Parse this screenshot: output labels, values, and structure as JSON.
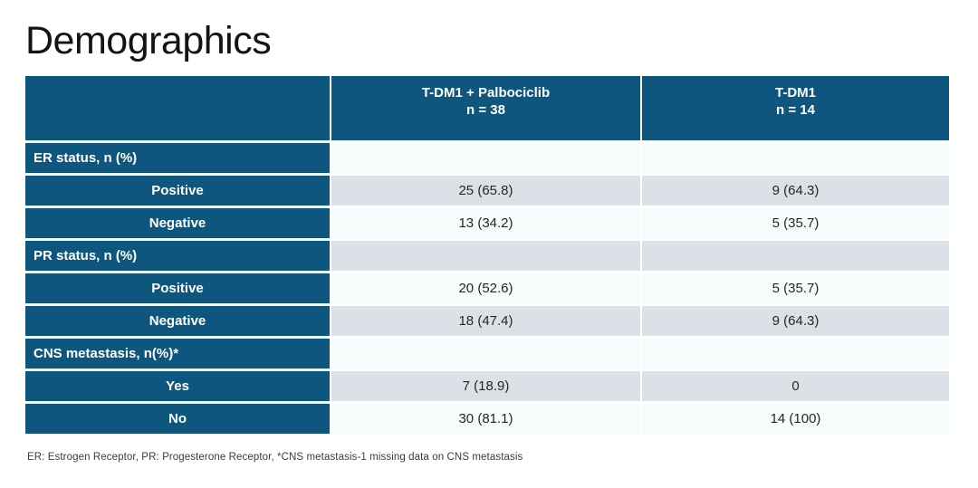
{
  "slide": {
    "title": "Demographics",
    "footnote": "ER: Estrogen Receptor, PR: Progesterone Receptor, *CNS metastasis-1 missing data on CNS metastasis"
  },
  "colors": {
    "header_blue": "#0E567D",
    "gray_row": "#DCE1E8",
    "light_row": "#F6FBFB",
    "title_text": "#141414",
    "header_text": "#FFFFFF",
    "cell_text": "#262626"
  },
  "table": {
    "columns": [
      {
        "line1": "",
        "line2": ""
      },
      {
        "line1": "T-DM1 + Palbociclib",
        "line2": "n = 38"
      },
      {
        "line1": "T-DM1",
        "line2": "n = 14"
      }
    ],
    "rows": [
      {
        "type": "section",
        "label": "ER status, n (%)",
        "values": [
          "",
          ""
        ]
      },
      {
        "type": "data",
        "label": "Positive",
        "values": [
          "25 (65.8)",
          "9 (64.3)"
        ]
      },
      {
        "type": "data",
        "label": "Negative",
        "values": [
          "13 (34.2)",
          "5 (35.7)"
        ]
      },
      {
        "type": "section",
        "label": "PR status, n (%)",
        "values": [
          "",
          ""
        ]
      },
      {
        "type": "data",
        "label": "Positive",
        "values": [
          "20 (52.6)",
          "5 (35.7)"
        ]
      },
      {
        "type": "data",
        "label": "Negative",
        "values": [
          "18 (47.4)",
          "9 (64.3)"
        ]
      },
      {
        "type": "section",
        "label": "CNS metastasis, n(%)*",
        "values": [
          "",
          ""
        ]
      },
      {
        "type": "data",
        "label": "Yes",
        "values": [
          "7 (18.9)",
          "0"
        ]
      },
      {
        "type": "data",
        "label": "No",
        "values": [
          "30 (81.1)",
          "14 (100)"
        ]
      }
    ]
  }
}
